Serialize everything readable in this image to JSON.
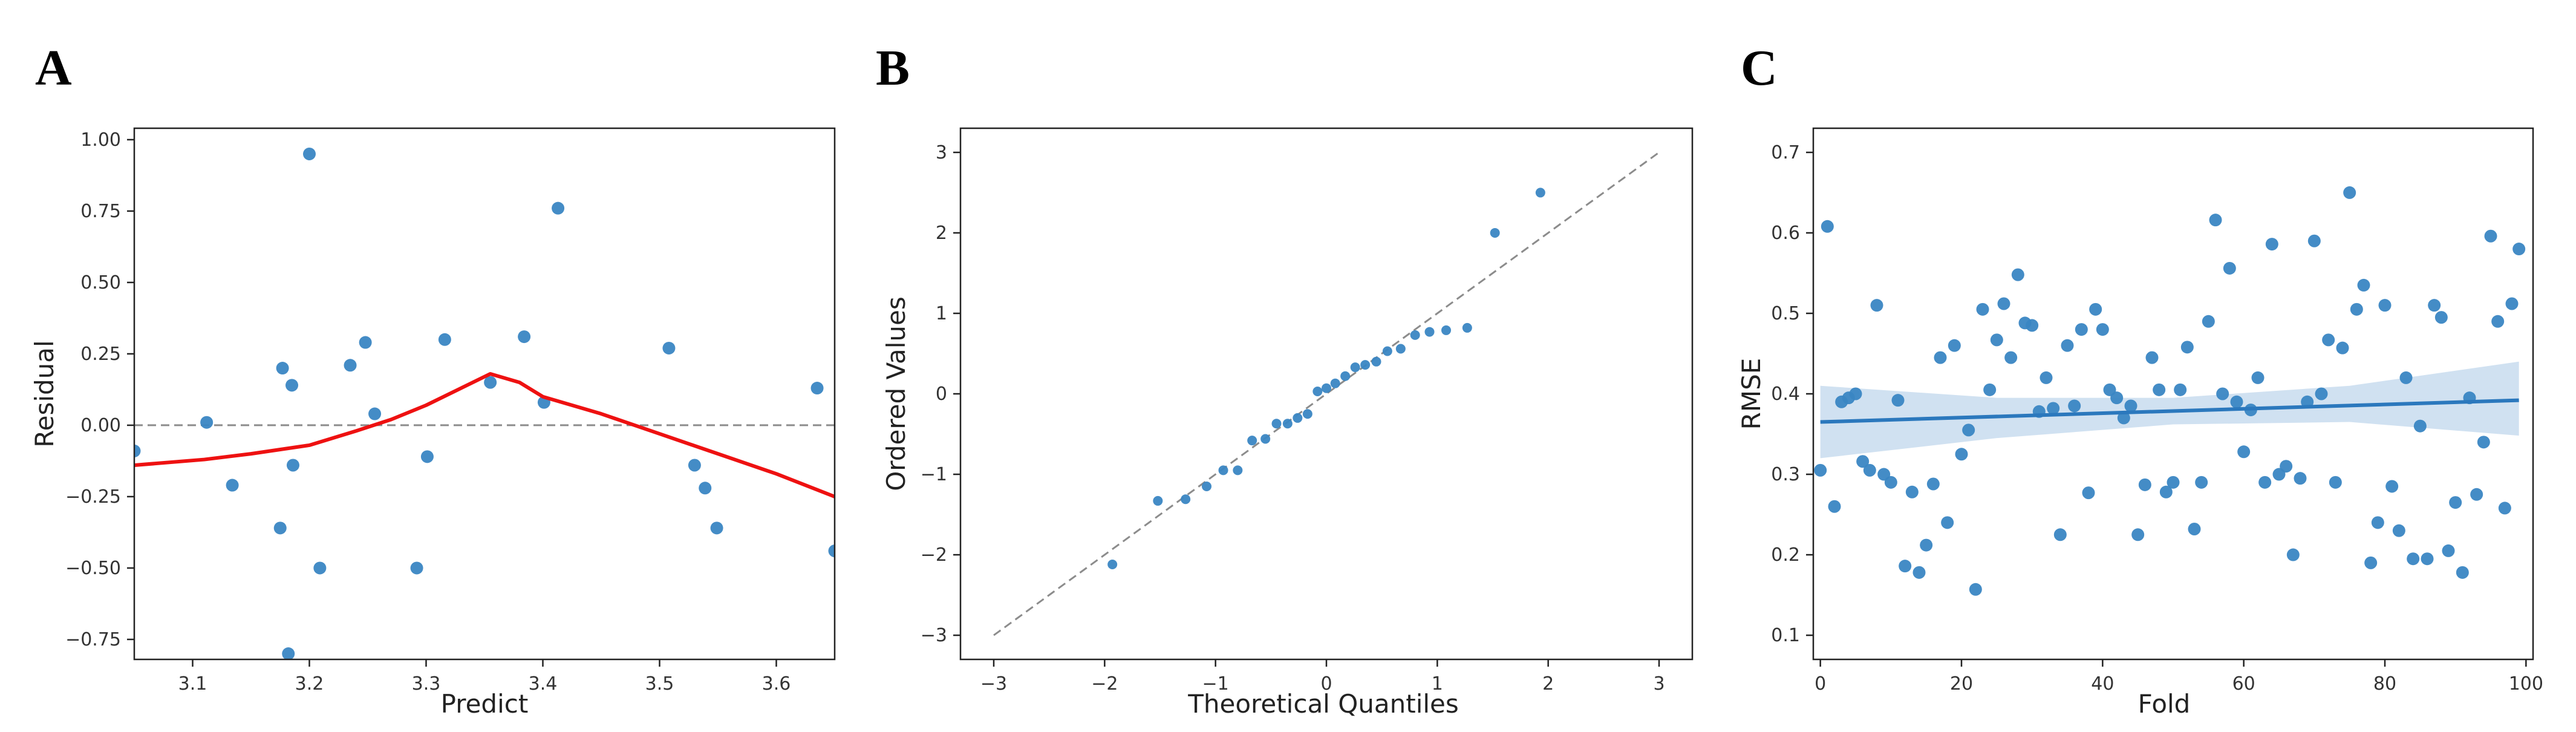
{
  "panels": {
    "A": {
      "letter": "A"
    },
    "B": {
      "letter": "B"
    },
    "C": {
      "letter": "C"
    }
  },
  "colors": {
    "points": "#3a86c3",
    "lowess": "#ee1111",
    "reference": "#8c8c8c",
    "regression": "#2b78bd",
    "ci_band": "#c8dcee"
  },
  "chart_data": [
    {
      "id": "A",
      "type": "scatter",
      "xlabel": "Predict",
      "ylabel": "Residual",
      "xlim": [
        3.05,
        3.65
      ],
      "ylim": [
        -0.82,
        1.04
      ],
      "x_ticks": [
        3.1,
        3.2,
        3.3,
        3.4,
        3.5,
        3.6
      ],
      "x_tick_labels": [
        "3.1",
        "3.2",
        "3.3",
        "3.4",
        "3.5",
        "3.6"
      ],
      "y_ticks": [
        1.0,
        0.75,
        0.5,
        0.25,
        0.0,
        -0.25,
        -0.5,
        -0.75
      ],
      "y_tick_labels": [
        "1.00",
        "0.75",
        "0.50",
        "0.25",
        "0.00",
        "−0.25",
        "−0.50",
        "−0.75"
      ],
      "reference_line_y": 0,
      "points": [
        [
          3.05,
          -0.09
        ],
        [
          3.112,
          0.01
        ],
        [
          3.134,
          -0.21
        ],
        [
          3.175,
          -0.36
        ],
        [
          3.177,
          0.2
        ],
        [
          3.182,
          -0.8
        ],
        [
          3.185,
          0.14
        ],
        [
          3.186,
          -0.14
        ],
        [
          3.2,
          0.95
        ],
        [
          3.209,
          -0.5
        ],
        [
          3.235,
          0.21
        ],
        [
          3.248,
          0.29
        ],
        [
          3.256,
          0.04
        ],
        [
          3.292,
          -0.5
        ],
        [
          3.301,
          -0.11
        ],
        [
          3.316,
          0.3
        ],
        [
          3.355,
          0.15
        ],
        [
          3.384,
          0.31
        ],
        [
          3.401,
          0.08
        ],
        [
          3.413,
          0.76
        ],
        [
          3.508,
          0.27
        ],
        [
          3.53,
          -0.14
        ],
        [
          3.539,
          -0.22
        ],
        [
          3.549,
          -0.36
        ],
        [
          3.635,
          0.13
        ],
        [
          3.65,
          -0.44
        ]
      ],
      "lowess": [
        [
          3.05,
          -0.14
        ],
        [
          3.11,
          -0.12
        ],
        [
          3.15,
          -0.1
        ],
        [
          3.2,
          -0.07
        ],
        [
          3.24,
          -0.02
        ],
        [
          3.27,
          0.02
        ],
        [
          3.3,
          0.07
        ],
        [
          3.33,
          0.13
        ],
        [
          3.355,
          0.18
        ],
        [
          3.38,
          0.15
        ],
        [
          3.4,
          0.1
        ],
        [
          3.45,
          0.04
        ],
        [
          3.5,
          -0.03
        ],
        [
          3.55,
          -0.1
        ],
        [
          3.6,
          -0.17
        ],
        [
          3.65,
          -0.25
        ]
      ]
    },
    {
      "id": "B",
      "type": "scatter",
      "xlabel": "Theoretical Quantiles",
      "ylabel": "Ordered Values",
      "xlim": [
        -3.3,
        3.3
      ],
      "ylim": [
        -3.3,
        3.3
      ],
      "x_ticks": [
        -3,
        -2,
        -1,
        0,
        1,
        2,
        3
      ],
      "x_tick_labels": [
        "−3",
        "−2",
        "−1",
        "0",
        "1",
        "2",
        "3"
      ],
      "y_ticks": [
        3,
        2,
        1,
        0,
        -1,
        -2,
        -3
      ],
      "y_tick_labels": [
        "3",
        "2",
        "1",
        "0",
        "−1",
        "−2",
        "−3"
      ],
      "reference_line": [
        [
          -3,
          -3
        ],
        [
          3,
          3
        ]
      ],
      "points": [
        [
          -1.93,
          -2.12
        ],
        [
          -1.52,
          -1.33
        ],
        [
          -1.27,
          -1.31
        ],
        [
          -1.08,
          -1.15
        ],
        [
          -0.93,
          -0.95
        ],
        [
          -0.8,
          -0.95
        ],
        [
          -0.67,
          -0.58
        ],
        [
          -0.55,
          -0.56
        ],
        [
          -0.45,
          -0.37
        ],
        [
          -0.35,
          -0.37
        ],
        [
          -0.26,
          -0.3
        ],
        [
          -0.17,
          -0.25
        ],
        [
          -0.08,
          0.03
        ],
        [
          0.0,
          0.07
        ],
        [
          0.08,
          0.13
        ],
        [
          0.17,
          0.22
        ],
        [
          0.26,
          0.33
        ],
        [
          0.35,
          0.36
        ],
        [
          0.45,
          0.4
        ],
        [
          0.55,
          0.53
        ],
        [
          0.67,
          0.56
        ],
        [
          0.8,
          0.73
        ],
        [
          0.93,
          0.77
        ],
        [
          1.08,
          0.79
        ],
        [
          1.27,
          0.82
        ],
        [
          1.52,
          2.0
        ],
        [
          1.93,
          2.5
        ]
      ]
    },
    {
      "id": "C",
      "type": "scatter",
      "xlabel": "Fold",
      "ylabel": "RMSE",
      "xlim": [
        -1,
        101
      ],
      "ylim": [
        0.07,
        0.73
      ],
      "x_ticks": [
        0,
        20,
        40,
        60,
        80,
        100
      ],
      "x_tick_labels": [
        "0",
        "20",
        "40",
        "60",
        "80",
        "100"
      ],
      "y_ticks": [
        0.7,
        0.6,
        0.5,
        0.4,
        0.3,
        0.2,
        0.1
      ],
      "y_tick_labels": [
        "0.7",
        "0.6",
        "0.5",
        "0.4",
        "0.3",
        "0.2",
        "0.1"
      ],
      "regression": {
        "x": [
          0,
          99
        ],
        "y": [
          0.365,
          0.392
        ]
      },
      "ci_band": {
        "x": [
          0,
          25,
          50,
          75,
          99
        ],
        "upper": [
          0.41,
          0.395,
          0.395,
          0.41,
          0.44
        ],
        "lower": [
          0.32,
          0.345,
          0.362,
          0.365,
          0.348
        ]
      },
      "points": [
        [
          0,
          0.305
        ],
        [
          1,
          0.608
        ],
        [
          2,
          0.26
        ],
        [
          3,
          0.39
        ],
        [
          4,
          0.395
        ],
        [
          5,
          0.4
        ],
        [
          6,
          0.316
        ],
        [
          7,
          0.305
        ],
        [
          8,
          0.51
        ],
        [
          9,
          0.3
        ],
        [
          10,
          0.29
        ],
        [
          11,
          0.392
        ],
        [
          12,
          0.186
        ],
        [
          13,
          0.278
        ],
        [
          14,
          0.178
        ],
        [
          15,
          0.212
        ],
        [
          16,
          0.288
        ],
        [
          17,
          0.445
        ],
        [
          18,
          0.24
        ],
        [
          19,
          0.46
        ],
        [
          20,
          0.325
        ],
        [
          21,
          0.355
        ],
        [
          22,
          0.157
        ],
        [
          23,
          0.505
        ],
        [
          24,
          0.405
        ],
        [
          25,
          0.467
        ],
        [
          26,
          0.512
        ],
        [
          27,
          0.445
        ],
        [
          28,
          0.548
        ],
        [
          29,
          0.488
        ],
        [
          30,
          0.485
        ],
        [
          31,
          0.378
        ],
        [
          32,
          0.42
        ],
        [
          33,
          0.382
        ],
        [
          34,
          0.225
        ],
        [
          35,
          0.46
        ],
        [
          36,
          0.385
        ],
        [
          37,
          0.48
        ],
        [
          38,
          0.277
        ],
        [
          39,
          0.505
        ],
        [
          40,
          0.48
        ],
        [
          41,
          0.405
        ],
        [
          42,
          0.395
        ],
        [
          43,
          0.37
        ],
        [
          44,
          0.385
        ],
        [
          45,
          0.225
        ],
        [
          46,
          0.287
        ],
        [
          47,
          0.445
        ],
        [
          48,
          0.405
        ],
        [
          49,
          0.278
        ],
        [
          50,
          0.29
        ],
        [
          51,
          0.405
        ],
        [
          52,
          0.458
        ],
        [
          53,
          0.232
        ],
        [
          54,
          0.29
        ],
        [
          55,
          0.49
        ],
        [
          56,
          0.616
        ],
        [
          57,
          0.4
        ],
        [
          58,
          0.556
        ],
        [
          59,
          0.39
        ],
        [
          60,
          0.328
        ],
        [
          61,
          0.38
        ],
        [
          62,
          0.42
        ],
        [
          63,
          0.29
        ],
        [
          64,
          0.586
        ],
        [
          65,
          0.3
        ],
        [
          66,
          0.31
        ],
        [
          67,
          0.2
        ],
        [
          68,
          0.295
        ],
        [
          69,
          0.39
        ],
        [
          70,
          0.59
        ],
        [
          71,
          0.4
        ],
        [
          72,
          0.467
        ],
        [
          73,
          0.29
        ],
        [
          74,
          0.457
        ],
        [
          75,
          0.65
        ],
        [
          76,
          0.505
        ],
        [
          77,
          0.535
        ],
        [
          78,
          0.19
        ],
        [
          79,
          0.24
        ],
        [
          80,
          0.51
        ],
        [
          81,
          0.285
        ],
        [
          82,
          0.23
        ],
        [
          83,
          0.42
        ],
        [
          84,
          0.195
        ],
        [
          85,
          0.36
        ],
        [
          86,
          0.195
        ],
        [
          87,
          0.51
        ],
        [
          88,
          0.495
        ],
        [
          89,
          0.205
        ],
        [
          90,
          0.265
        ],
        [
          91,
          0.178
        ],
        [
          92,
          0.395
        ],
        [
          93,
          0.275
        ],
        [
          94,
          0.34
        ],
        [
          95,
          0.596
        ],
        [
          96,
          0.49
        ],
        [
          97,
          0.258
        ],
        [
          98,
          0.512
        ],
        [
          99,
          0.58
        ]
      ]
    }
  ]
}
